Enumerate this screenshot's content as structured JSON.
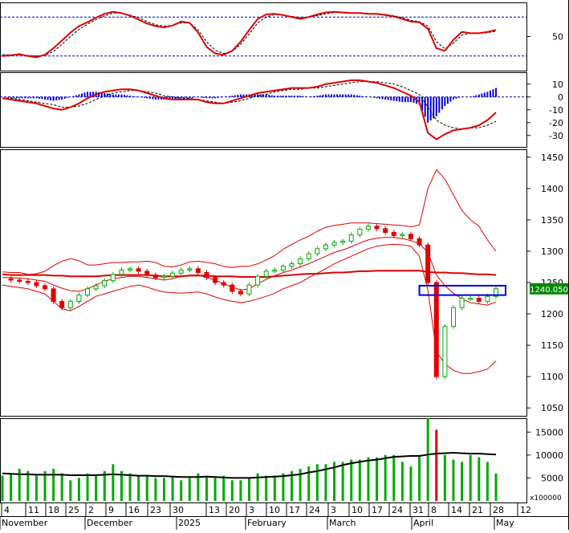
{
  "chart_data": [
    {
      "type": "line",
      "panel": "rsi",
      "ylim": [
        0,
        100
      ],
      "yticks": [
        50
      ],
      "reference_lines": [
        80,
        20
      ],
      "grid": false,
      "colors": {
        "line": "#e00000",
        "signal": "#000000",
        "reference": "#0000c0"
      },
      "series": [
        {
          "values": [
            20,
            21,
            23,
            20,
            18,
            22,
            32,
            44,
            56,
            66,
            72,
            79,
            85,
            88,
            86,
            82,
            76,
            70,
            66,
            64,
            67,
            73,
            71,
            56,
            34,
            24,
            22,
            28,
            42,
            60,
            77,
            84,
            85,
            83,
            80,
            77,
            80,
            84,
            87,
            88,
            87,
            86,
            86,
            85,
            85,
            83,
            81,
            77,
            73,
            72,
            62,
            32,
            28,
            45,
            57,
            55,
            55,
            57,
            60
          ]
        },
        {
          "values": [
            22,
            22,
            22,
            21,
            20,
            21,
            27,
            38,
            50,
            61,
            69,
            76,
            82,
            86,
            86,
            83,
            79,
            73,
            68,
            66,
            67,
            71,
            71,
            60,
            42,
            29,
            24,
            27,
            38,
            54,
            71,
            80,
            84,
            83,
            81,
            79,
            80,
            82,
            85,
            87,
            87,
            86,
            86,
            85,
            85,
            84,
            82,
            79,
            75,
            73,
            66,
            42,
            31,
            40,
            52,
            55,
            55,
            56,
            58
          ]
        }
      ]
    },
    {
      "type": "bar",
      "panel": "macd",
      "ylim": [
        -37,
        18
      ],
      "yticks": [
        10,
        0,
        -10,
        -20,
        -30
      ],
      "grid": false,
      "colors": {
        "macd": "#e00000",
        "signal": "#000000",
        "histogram": "#0000e0"
      },
      "series": [
        {
          "values": [
            -1,
            -2,
            -3,
            -4,
            -5,
            -7,
            -9,
            -10,
            -8,
            -5,
            -1,
            2,
            4,
            5,
            6,
            6,
            5,
            3,
            1,
            -1,
            -2,
            -2,
            -2,
            -2,
            -4,
            -5,
            -5,
            -3,
            -1,
            1,
            3,
            4,
            5,
            6,
            7,
            7,
            7,
            8,
            10,
            11,
            12,
            13,
            13,
            12,
            11,
            9,
            7,
            4,
            1,
            -4,
            -28,
            -33,
            -29,
            -26,
            -25,
            -24,
            -22,
            -18,
            -12
          ]
        },
        {
          "values": [
            -1,
            -1,
            -2,
            -3,
            -4,
            -5,
            -6,
            -8,
            -8,
            -7,
            -5,
            -2,
            1,
            3,
            4,
            5,
            5,
            4,
            3,
            1,
            0,
            -1,
            -1,
            -2,
            -3,
            -4,
            -5,
            -4,
            -3,
            -1,
            1,
            2,
            4,
            5,
            6,
            6,
            7,
            7,
            8,
            9,
            10,
            11,
            12,
            12,
            12,
            11,
            10,
            8,
            5,
            2,
            -8,
            -18,
            -22,
            -24,
            -25,
            -24,
            -24,
            -22,
            -19
          ]
        },
        {
          "values": [
            0,
            -1,
            -1,
            -1,
            -1,
            -2,
            -3,
            -2,
            0,
            2,
            4,
            4,
            3,
            2,
            2,
            1,
            0,
            -1,
            -2,
            -2,
            -2,
            -1,
            -1,
            0,
            -1,
            -1,
            0,
            1,
            2,
            2,
            2,
            2,
            1,
            1,
            1,
            1,
            0,
            1,
            2,
            2,
            2,
            2,
            1,
            0,
            -1,
            -2,
            -3,
            -4,
            -4,
            -6,
            -20,
            -15,
            -7,
            -2,
            0,
            0,
            2,
            4,
            7
          ]
        }
      ]
    },
    {
      "type": "candlestick",
      "panel": "price",
      "ylim": [
        1040,
        1460
      ],
      "yticks": [
        1450,
        1400,
        1350,
        1300,
        1250,
        1200,
        1150,
        1100,
        1050
      ],
      "last_value_label": "1240.050",
      "grid": false,
      "colors": {
        "up": "#00aa00",
        "down": "#e00000",
        "band": "#e00000",
        "ma": "#e00000",
        "label_bg": "#008800",
        "highlight_box": "#0000e0"
      },
      "annotation": {
        "type": "box",
        "x_range": [
          49,
          58
        ],
        "y_range": [
          1230,
          1245
        ]
      },
      "series": [
        {
          "values": [
            1256,
            1254,
            1252,
            1250,
            1245,
            1240,
            1220,
            1210,
            1220,
            1230,
            1240,
            1245,
            1253,
            1263,
            1270,
            1272,
            1268,
            1262,
            1258,
            1260,
            1265,
            1270,
            1272,
            1266,
            1258,
            1250,
            1246,
            1236,
            1232,
            1246,
            1260,
            1268,
            1270,
            1276,
            1280,
            1288,
            1296,
            1304,
            1310,
            1314,
            1316,
            1326,
            1335,
            1340,
            1336,
            1330,
            1325,
            1327,
            1320,
            1310,
            1250,
            1100,
            1180,
            1210,
            1225,
            1225,
            1220,
            1228,
            1240
          ]
        },
        {
          "values": [
            1258,
            1258,
            1257,
            1256,
            1254,
            1252,
            1246,
            1241,
            1237,
            1236,
            1240,
            1246,
            1252,
            1256,
            1258,
            1260,
            1260,
            1258,
            1256,
            1254,
            1256,
            1260,
            1262,
            1262,
            1258,
            1254,
            1248,
            1243,
            1238,
            1240,
            1248,
            1255,
            1261,
            1266,
            1270,
            1275,
            1280,
            1286,
            1292,
            1298,
            1302,
            1307,
            1313,
            1318,
            1321,
            1322,
            1322,
            1320,
            1317,
            1312,
            1298,
            1262,
            1245,
            1233,
            1224,
            1218,
            1216,
            1214,
            1219
          ]
        },
        {
          "values": [
            1263,
            1262,
            1262,
            1262,
            1262,
            1262,
            1261,
            1261,
            1260,
            1260,
            1260,
            1260,
            1261,
            1262,
            1262,
            1262,
            1262,
            1262,
            1261,
            1260,
            1260,
            1260,
            1261,
            1261,
            1261,
            1260,
            1260,
            1260,
            1259,
            1259,
            1259,
            1259,
            1260,
            1261,
            1262,
            1263,
            1264,
            1264,
            1265,
            1266,
            1266,
            1267,
            1268,
            1268,
            1269,
            1269,
            1269,
            1269,
            1269,
            1269,
            1267,
            1266,
            1266,
            1265,
            1265,
            1264,
            1263,
            1263,
            1262
          ]
        },
        {
          "values": [
            1267,
            1266,
            1266,
            1263,
            1264,
            1268,
            1277,
            1284,
            1288,
            1285,
            1278,
            1278,
            1280,
            1282,
            1282,
            1283,
            1283,
            1284,
            1282,
            1276,
            1275,
            1278,
            1283,
            1284,
            1282,
            1280,
            1276,
            1274,
            1276,
            1276,
            1280,
            1286,
            1293,
            1303,
            1311,
            1318,
            1324,
            1332,
            1338,
            1341,
            1343,
            1345,
            1345,
            1345,
            1344,
            1343,
            1342,
            1341,
            1339,
            1342,
            1400,
            1430,
            1415,
            1390,
            1365,
            1350,
            1340,
            1318,
            1300
          ]
        },
        {
          "values": [
            1246,
            1244,
            1242,
            1240,
            1236,
            1232,
            1220,
            1208,
            1205,
            1212,
            1220,
            1228,
            1232,
            1236,
            1240,
            1244,
            1246,
            1243,
            1238,
            1235,
            1234,
            1233,
            1234,
            1235,
            1232,
            1227,
            1223,
            1220,
            1218,
            1220,
            1224,
            1228,
            1233,
            1240,
            1245,
            1250,
            1258,
            1265,
            1272,
            1280,
            1286,
            1292,
            1298,
            1304,
            1308,
            1310,
            1311,
            1310,
            1308,
            1292,
            1238,
            1140,
            1120,
            1110,
            1105,
            1105,
            1108,
            1112,
            1125
          ]
        }
      ]
    },
    {
      "type": "bar",
      "panel": "volume",
      "ylim": [
        0,
        17500
      ],
      "yticks": [
        15000,
        10000,
        5000
      ],
      "unit_label": "x100000",
      "grid": false,
      "colors": {
        "bars": "#00aa00",
        "alt": "#e00000",
        "ma": "#000000"
      },
      "series": [
        {
          "values": [
            5500,
            6000,
            7000,
            6500,
            5500,
            6500,
            7000,
            6000,
            4500,
            5000,
            6000,
            5500,
            6500,
            8000,
            6500,
            6000,
            5500,
            5500,
            5000,
            5000,
            5500,
            4500,
            5000,
            6000,
            5500,
            5000,
            5500,
            4500,
            4500,
            5000,
            6000,
            5500,
            5500,
            6000,
            6500,
            7000,
            7500,
            8000,
            8000,
            8500,
            8500,
            9000,
            9000,
            9500,
            9500,
            10000,
            10000,
            8500,
            7500,
            10000,
            18000,
            15500,
            10000,
            9000,
            8500,
            10000,
            9500,
            8500,
            6000
          ]
        },
        {
          "values": [
            6000,
            5900,
            5800,
            5800,
            5700,
            5700,
            5700,
            5700,
            5600,
            5600,
            5600,
            5600,
            5700,
            5800,
            5700,
            5600,
            5500,
            5500,
            5400,
            5400,
            5300,
            5200,
            5200,
            5200,
            5300,
            5200,
            5100,
            5000,
            5000,
            5000,
            5100,
            5200,
            5300,
            5400,
            5600,
            5800,
            6200,
            6500,
            6900,
            7300,
            7800,
            8200,
            8500,
            8800,
            9000,
            9300,
            9600,
            9700,
            9800,
            9800,
            10100,
            10300,
            10400,
            10500,
            10400,
            10300,
            10300,
            10200,
            10100
          ]
        }
      ]
    }
  ],
  "x_axis": {
    "day_labels": [
      "4",
      "11",
      "18",
      "25",
      "2",
      "9",
      "16",
      "23",
      "30",
      "13",
      "20",
      "3",
      "10",
      "17",
      "24",
      "3",
      "10",
      "17",
      "24",
      "31",
      "8",
      "14",
      "21",
      "28",
      "12"
    ],
    "month_labels": [
      "November",
      "December",
      "2025",
      "February",
      "March",
      "April",
      "May"
    ]
  }
}
